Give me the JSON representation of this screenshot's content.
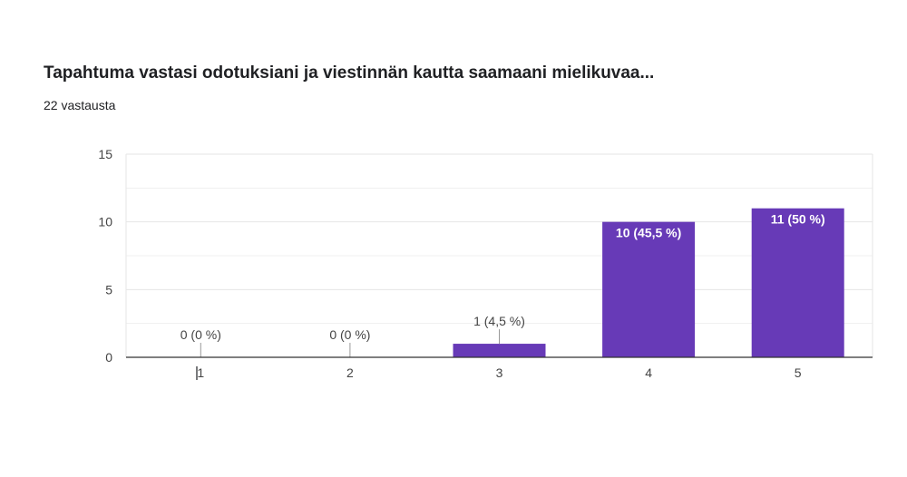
{
  "title": "Tapahtuma vastasi odotuksiani ja viestinnän kautta saamaani mielikuvaa...",
  "subtitle": "22 vastausta",
  "colors": {
    "bar": "#673ab7",
    "grid": "#e6e6e6",
    "axis": "#333333"
  },
  "chart_data": {
    "type": "bar",
    "categories": [
      "1",
      "2",
      "3",
      "4",
      "5"
    ],
    "values": [
      0,
      0,
      1,
      10,
      11
    ],
    "data_labels": [
      "0 (0 %)",
      "0 (0 %)",
      "1 (4,5 %)",
      "10 (45,5 %)",
      "11 (50 %)"
    ],
    "yticks": [
      "0",
      "5",
      "10",
      "15"
    ],
    "ylim": [
      0,
      15
    ],
    "grid": true
  }
}
